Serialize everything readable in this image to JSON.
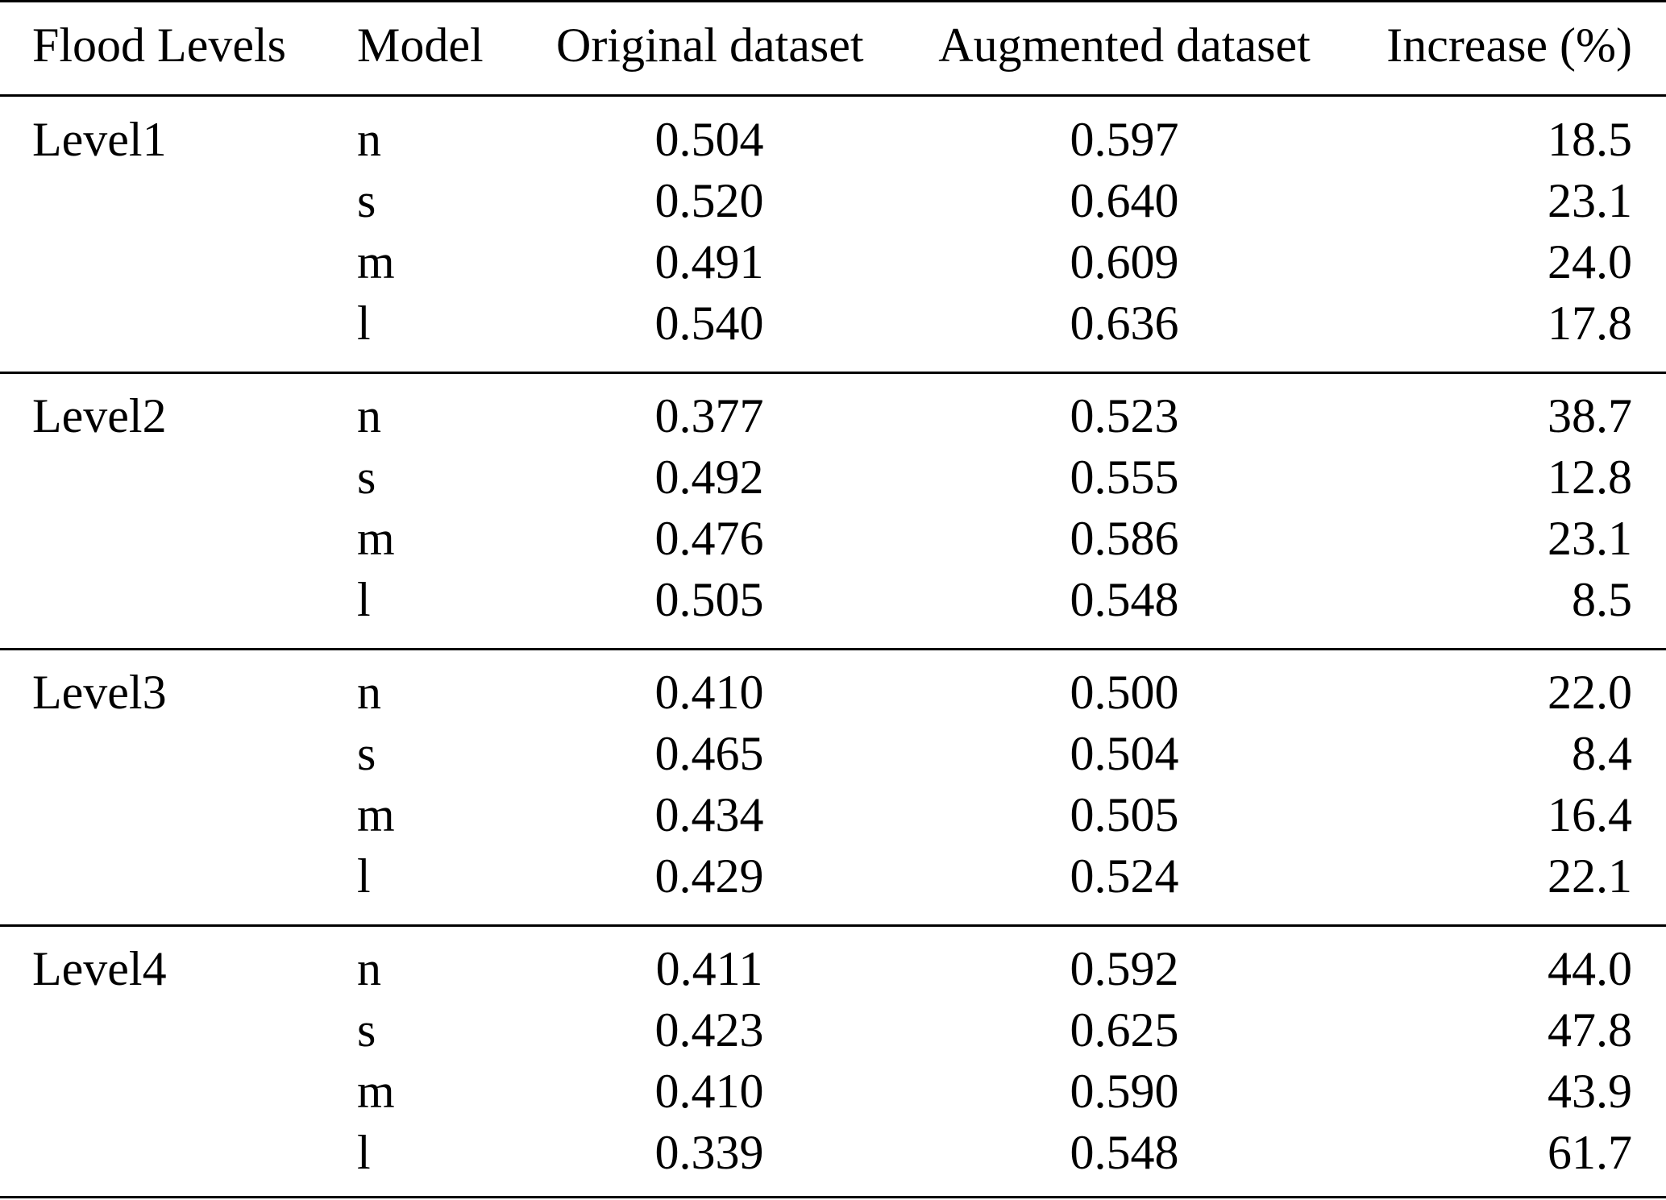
{
  "table": {
    "headers": {
      "level": "Flood Levels",
      "model": "Model",
      "original": "Original dataset",
      "augmented": "Augmented dataset",
      "increase": "Increase (%)"
    },
    "groups": [
      {
        "level": "Level1",
        "rows": [
          {
            "model": "n",
            "original": "0.504",
            "augmented": "0.597",
            "increase": "18.5"
          },
          {
            "model": "s",
            "original": "0.520",
            "augmented": "0.640",
            "increase": "23.1"
          },
          {
            "model": "m",
            "original": "0.491",
            "augmented": "0.609",
            "increase": "24.0"
          },
          {
            "model": "l",
            "original": "0.540",
            "augmented": "0.636",
            "increase": "17.8"
          }
        ]
      },
      {
        "level": "Level2",
        "rows": [
          {
            "model": "n",
            "original": "0.377",
            "augmented": "0.523",
            "increase": "38.7"
          },
          {
            "model": "s",
            "original": "0.492",
            "augmented": "0.555",
            "increase": "12.8"
          },
          {
            "model": "m",
            "original": "0.476",
            "augmented": "0.586",
            "increase": "23.1"
          },
          {
            "model": "l",
            "original": "0.505",
            "augmented": "0.548",
            "increase": "8.5"
          }
        ]
      },
      {
        "level": "Level3",
        "rows": [
          {
            "model": "n",
            "original": "0.410",
            "augmented": "0.500",
            "increase": "22.0"
          },
          {
            "model": "s",
            "original": "0.465",
            "augmented": "0.504",
            "increase": "8.4"
          },
          {
            "model": "m",
            "original": "0.434",
            "augmented": "0.505",
            "increase": "16.4"
          },
          {
            "model": "l",
            "original": "0.429",
            "augmented": "0.524",
            "increase": "22.1"
          }
        ]
      },
      {
        "level": "Level4",
        "rows": [
          {
            "model": "n",
            "original": "0.411",
            "augmented": "0.592",
            "increase": "44.0"
          },
          {
            "model": "s",
            "original": "0.423",
            "augmented": "0.625",
            "increase": "47.8"
          },
          {
            "model": "m",
            "original": "0.410",
            "augmented": "0.590",
            "increase": "43.9"
          },
          {
            "model": "l",
            "original": "0.339",
            "augmented": "0.548",
            "increase": "61.7"
          }
        ]
      }
    ]
  }
}
